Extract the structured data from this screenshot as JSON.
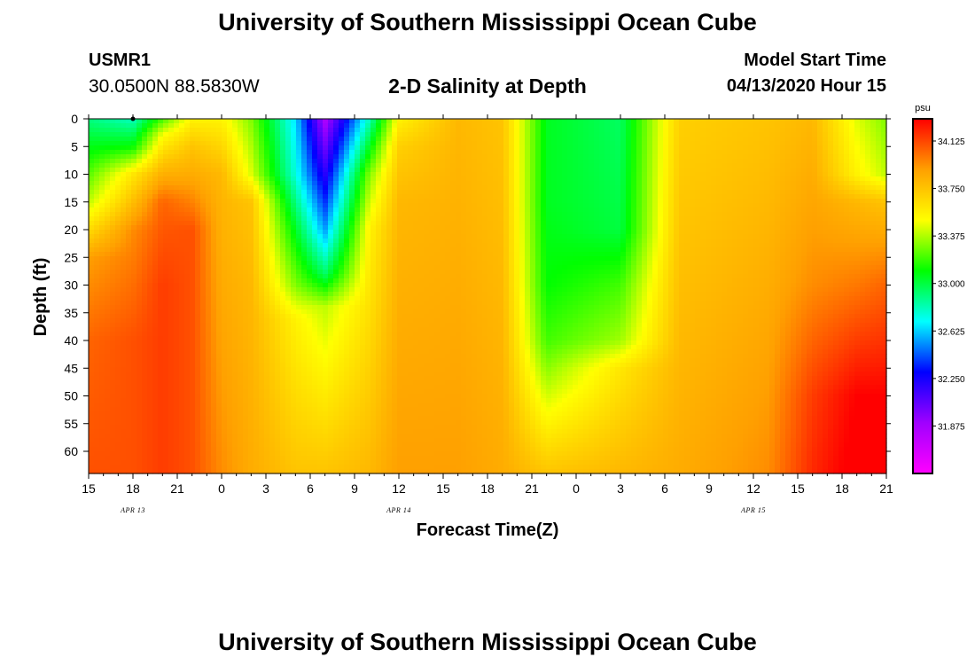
{
  "header": {
    "title": "University of Southern Mississippi Ocean Cube",
    "station_id": "USMR1",
    "station_coords": "30.0500N 88.5830W",
    "subtitle": "2-D Salinity at Depth",
    "model_start_label": "Model Start Time",
    "model_start_value": "04/13/2020 Hour 15"
  },
  "footer": {
    "title": "University of Southern Mississippi Ocean Cube"
  },
  "chart_data": {
    "type": "heatmap",
    "title": "2-D Salinity at Depth",
    "xlabel": "Forecast Time(Z)",
    "ylabel": "Depth (ft)",
    "x_range_hours": [
      0,
      54
    ],
    "y_range_ft": [
      0,
      64
    ],
    "x_ticks": [
      "15",
      "18",
      "21",
      "0",
      "3",
      "6",
      "9",
      "12",
      "15",
      "18",
      "21",
      "0",
      "3",
      "6",
      "9",
      "12",
      "15",
      "18",
      "21"
    ],
    "date_labels": [
      {
        "label": "APR 13",
        "at_hour": 3
      },
      {
        "label": "APR 14",
        "at_hour": 21
      },
      {
        "label": "APR 15",
        "at_hour": 45
      }
    ],
    "y_ticks": [
      0,
      5,
      10,
      15,
      20,
      25,
      30,
      35,
      40,
      45,
      50,
      55,
      60
    ],
    "colorbar": {
      "unit": "psu",
      "min": 31.5,
      "max": 34.3,
      "ticks": [
        "34.125",
        "33.750",
        "33.375",
        "33.000",
        "32.625",
        "32.250",
        "31.875"
      ],
      "colors": [
        "#ff00ff",
        "#a000ff",
        "#0000ff",
        "#00ffff",
        "#00ff00",
        "#ffff00",
        "#ffa000",
        "#ff0000"
      ]
    },
    "profiles": [
      {
        "t": 0,
        "depths": [
          0,
          15,
          25,
          40,
          64
        ],
        "values": [
          32.9,
          33.4,
          33.9,
          34.05,
          34.1
        ]
      },
      {
        "t": 3,
        "depths": [
          0,
          5,
          10,
          20,
          40,
          64
        ],
        "values": [
          32.8,
          33.1,
          33.6,
          33.95,
          34.1,
          34.1
        ]
      },
      {
        "t": 5,
        "depths": [
          0,
          3,
          8,
          15,
          30,
          64
        ],
        "values": [
          33.2,
          33.5,
          33.75,
          34.05,
          34.15,
          34.15
        ]
      },
      {
        "t": 7,
        "depths": [
          0,
          5,
          10,
          20,
          64
        ],
        "values": [
          33.55,
          33.75,
          33.85,
          34.1,
          34.1
        ]
      },
      {
        "t": 9,
        "depths": [
          0,
          10,
          64
        ],
        "values": [
          33.55,
          33.8,
          33.95
        ]
      },
      {
        "t": 11,
        "depths": [
          0,
          10,
          15,
          30,
          64
        ],
        "values": [
          33.3,
          33.45,
          33.75,
          33.8,
          33.85
        ]
      },
      {
        "t": 14,
        "depths": [
          0,
          10,
          20,
          30,
          36,
          64
        ],
        "values": [
          32.65,
          32.75,
          33.05,
          33.3,
          33.55,
          33.75
        ]
      },
      {
        "t": 16,
        "depths": [
          0,
          20,
          28,
          34,
          64
        ],
        "values": [
          31.85,
          32.55,
          32.95,
          33.4,
          33.75
        ]
      },
      {
        "t": 19,
        "depths": [
          0,
          10,
          20,
          64
        ],
        "values": [
          32.8,
          33.3,
          33.55,
          33.8
        ]
      },
      {
        "t": 21,
        "depths": [
          0,
          5,
          15,
          64
        ],
        "values": [
          33.55,
          33.7,
          33.8,
          33.9
        ]
      },
      {
        "t": 25,
        "depths": [
          0,
          64
        ],
        "values": [
          33.8,
          33.9
        ]
      },
      {
        "t": 28,
        "depths": [
          0,
          64
        ],
        "values": [
          33.75,
          33.85
        ]
      },
      {
        "t": 31,
        "depths": [
          0,
          15,
          30,
          40,
          64
        ],
        "values": [
          33.05,
          33.05,
          33.1,
          33.2,
          33.75
        ]
      },
      {
        "t": 36,
        "depths": [
          0,
          20,
          30,
          40,
          45,
          64
        ],
        "values": [
          32.95,
          33.0,
          33.2,
          33.35,
          33.6,
          33.8
        ]
      },
      {
        "t": 40,
        "depths": [
          0,
          64
        ],
        "values": [
          33.7,
          33.85
        ]
      },
      {
        "t": 46,
        "depths": [
          0,
          64
        ],
        "values": [
          33.75,
          33.95
        ]
      },
      {
        "t": 49,
        "depths": [
          0,
          30,
          50,
          64
        ],
        "values": [
          33.8,
          33.95,
          34.15,
          34.2
        ]
      },
      {
        "t": 52,
        "depths": [
          0,
          10,
          15,
          30,
          50,
          64
        ],
        "values": [
          33.45,
          33.55,
          33.8,
          34.0,
          34.3,
          34.35
        ]
      },
      {
        "t": 54,
        "depths": [
          0,
          10,
          15,
          30,
          50,
          64
        ],
        "values": [
          33.3,
          33.4,
          33.75,
          34.05,
          34.3,
          34.4
        ]
      }
    ]
  }
}
